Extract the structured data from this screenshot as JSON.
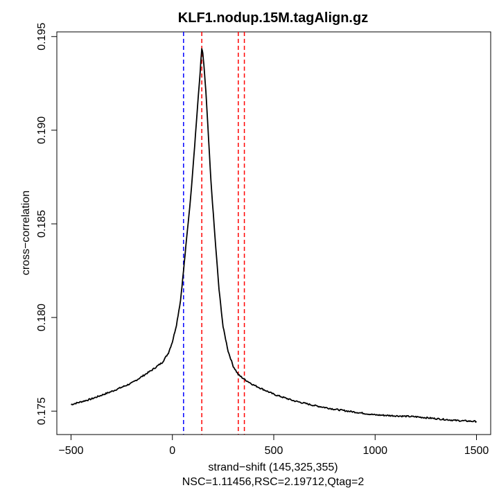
{
  "chart_data": {
    "type": "line",
    "title": "KLF1.nodup.15M.tagAlign.gz",
    "xlabel": "strand−shift (145,325,355)",
    "subtitle": "NSC=1.11456,RSC=2.19712,Qtag=2",
    "ylabel": "cross−correlation",
    "xlim": [
      -570,
      1570
    ],
    "ylim": [
      0.17375,
      0.19525
    ],
    "x_ticks": [
      -500,
      0,
      500,
      1000,
      1500
    ],
    "x_tick_labels": [
      "−500",
      "0",
      "500",
      "1000",
      "1500"
    ],
    "y_ticks": [
      0.175,
      0.18,
      0.185,
      0.19,
      0.195
    ],
    "y_tick_labels": [
      "0.175",
      "0.180",
      "0.185",
      "0.190",
      "0.195"
    ],
    "grid": false,
    "series": [
      {
        "color": "#000000",
        "x": [
          -500,
          -400,
          -300,
          -200,
          -100,
          -50,
          -20,
          0,
          20,
          40,
          55,
          70,
          90,
          110,
          125,
          135,
          140,
          145,
          150,
          155,
          165,
          175,
          190,
          210,
          230,
          250,
          275,
          300,
          325,
          355,
          400,
          500,
          600,
          700,
          800,
          900,
          1000,
          1100,
          1200,
          1300,
          1400,
          1500
        ],
        "y": [
          0.17535,
          0.17565,
          0.17605,
          0.1765,
          0.1772,
          0.1776,
          0.1781,
          0.1787,
          0.1796,
          0.1809,
          0.1825,
          0.1842,
          0.1864,
          0.1892,
          0.1914,
          0.1928,
          0.1936,
          0.19435,
          0.1941,
          0.1935,
          0.1921,
          0.1902,
          0.1873,
          0.1843,
          0.1815,
          0.1795,
          0.1782,
          0.1774,
          0.17695,
          0.1767,
          0.1764,
          0.1759,
          0.17555,
          0.1753,
          0.1751,
          0.17495,
          0.1748,
          0.17475,
          0.1747,
          0.1746,
          0.1745,
          0.17445
        ]
      }
    ],
    "vlines": [
      {
        "x": 55,
        "color": "#0000ff",
        "style": "dashed"
      },
      {
        "x": 145,
        "color": "#ff0000",
        "style": "dashed"
      },
      {
        "x": 325,
        "color": "#ff0000",
        "style": "dashed"
      },
      {
        "x": 355,
        "color": "#ff0000",
        "style": "dashed"
      }
    ]
  }
}
